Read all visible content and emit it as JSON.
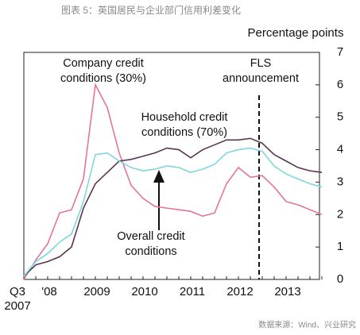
{
  "chart_data": {
    "type": "line",
    "title": "图表 5：英国居民与企业部门信用利差变化",
    "y_axis_label": "Percentage points",
    "source": "数据来源：Wind、兴业研究",
    "categories": [
      "Q3",
      null,
      "'08",
      null,
      null,
      null,
      "2009",
      null,
      null,
      null,
      "2010",
      null,
      null,
      null,
      "2011",
      null,
      null,
      null,
      "2012",
      null,
      null,
      null,
      "2013",
      null,
      null,
      null
    ],
    "first_year": "2007",
    "ylim": [
      0,
      7
    ],
    "yticks": [
      0,
      1,
      2,
      3,
      4,
      5,
      6,
      7
    ],
    "series": [
      {
        "name": "Company credit conditions (30%)",
        "color": "#e5739f",
        "values": [
          0,
          0.6,
          1.1,
          2.05,
          2.15,
          3.1,
          6.0,
          5.3,
          3.9,
          2.9,
          2.5,
          2.25,
          2.2,
          2.15,
          2.1,
          1.95,
          2.05,
          2.95,
          3.45,
          3.15,
          3.2,
          2.85,
          2.4,
          2.3,
          2.15,
          2.0
        ]
      },
      {
        "name": "Household credit conditions (70%)",
        "color": "#5a3550",
        "values": [
          0.1,
          0.45,
          0.55,
          0.7,
          1.0,
          2.2,
          2.95,
          3.3,
          3.65,
          3.7,
          3.8,
          3.9,
          4.05,
          4.0,
          3.75,
          4.0,
          4.15,
          4.3,
          4.3,
          4.35,
          4.2,
          3.85,
          3.65,
          3.45,
          3.35,
          3.3
        ]
      },
      {
        "name": "Overall credit conditions",
        "color": "#7fd6df",
        "values": [
          0.1,
          0.55,
          0.8,
          1.15,
          1.4,
          2.4,
          3.85,
          3.9,
          3.65,
          3.45,
          3.35,
          3.4,
          3.5,
          3.45,
          3.3,
          3.4,
          3.55,
          3.9,
          4.0,
          4.05,
          3.95,
          3.5,
          3.25,
          3.1,
          2.95,
          2.85
        ]
      }
    ],
    "annotations": [
      {
        "lines": [
          "Company credit",
          "conditions (30%)"
        ]
      },
      {
        "lines": [
          "Household credit",
          "conditions (70%)"
        ]
      },
      {
        "lines": [
          "FLS",
          "announcement"
        ]
      },
      {
        "lines": [
          "Overall credit",
          "conditions"
        ]
      }
    ]
  }
}
